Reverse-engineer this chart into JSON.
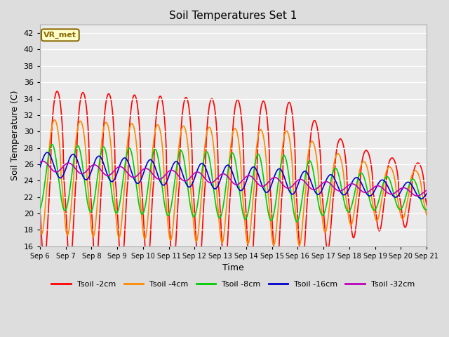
{
  "title": "Soil Temperatures Set 1",
  "xlabel": "Time",
  "ylabel": "Soil Temperature (C)",
  "ylim": [
    16,
    43
  ],
  "yticks": [
    16,
    18,
    20,
    22,
    24,
    26,
    28,
    30,
    32,
    34,
    36,
    38,
    40,
    42
  ],
  "xtick_labels": [
    "Sep 6",
    "Sep 7",
    "Sep 8",
    "Sep 9",
    "Sep 10",
    "Sep 11",
    "Sep 12",
    "Sep 13",
    "Sep 14",
    "Sep 15",
    "Sep 16",
    "Sep 17",
    "Sep 18",
    "Sep 19",
    "Sep 20",
    "Sep 21"
  ],
  "annotation_text": "VR_met",
  "annotation_bg": "#FFFFCC",
  "annotation_border": "#886600",
  "line_colors": {
    "Tsoil -2cm": "#FF0000",
    "Tsoil -4cm": "#FF8800",
    "Tsoil -8cm": "#00CC00",
    "Tsoil -16cm": "#0000CC",
    "Tsoil -32cm": "#BB00BB"
  },
  "bg_color": "#DDDDDD",
  "plot_bg_color": "#EBEBEB",
  "n_points": 1440,
  "days": 15
}
